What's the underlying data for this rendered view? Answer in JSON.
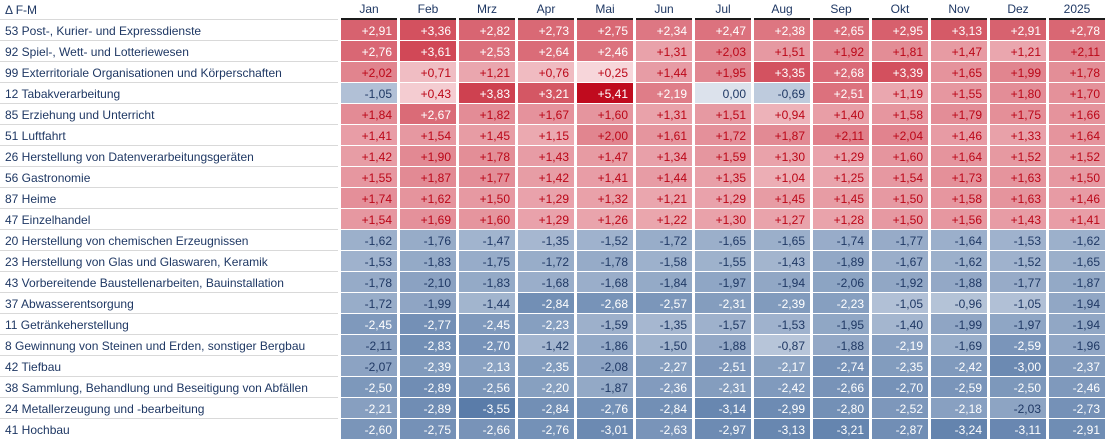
{
  "corner_label": "Δ F-M",
  "columns": [
    "Jan",
    "Feb",
    "Mrz",
    "Apr",
    "Mai",
    "Jun",
    "Jul",
    "Aug",
    "Sep",
    "Okt",
    "Nov",
    "Dez",
    "2025"
  ],
  "rows": [
    {
      "label": "53 Post-, Kurier- und Expressdienste",
      "values": [
        "+2,91",
        "+3,36",
        "+2,82",
        "+2,73",
        "+2,75",
        "+2,34",
        "+2,47",
        "+2,38",
        "+2,65",
        "+2,95",
        "+3,13",
        "+2,91",
        "+2,78"
      ]
    },
    {
      "label": "92 Spiel-, Wett- und Lotteriewesen",
      "values": [
        "+2,76",
        "+3,61",
        "+2,53",
        "+2,64",
        "+2,46",
        "+1,31",
        "+2,03",
        "+1,51",
        "+1,92",
        "+1,81",
        "+1,47",
        "+1,21",
        "+2,11"
      ]
    },
    {
      "label": "99 Exterritoriale Organisationen und Körperschaften",
      "values": [
        "+2,02",
        "+0,71",
        "+1,21",
        "+0,76",
        "+0,25",
        "+1,44",
        "+1,95",
        "+3,35",
        "+2,68",
        "+3,39",
        "+1,65",
        "+1,99",
        "+1,78"
      ]
    },
    {
      "label": "12 Tabakverarbeitung",
      "values": [
        "-1,05",
        "+0,43",
        "+3,83",
        "+3,21",
        "+5,41",
        "+2,19",
        "0,00",
        "-0,69",
        "+2,51",
        "+1,19",
        "+1,55",
        "+1,80",
        "+1,70"
      ]
    },
    {
      "label": "85 Erziehung und Unterricht",
      "values": [
        "+1,84",
        "+2,67",
        "+1,82",
        "+1,67",
        "+1,60",
        "+1,31",
        "+1,51",
        "+0,94",
        "+1,40",
        "+1,58",
        "+1,79",
        "+1,75",
        "+1,66"
      ]
    },
    {
      "label": "51 Luftfahrt",
      "values": [
        "+1,41",
        "+1,54",
        "+1,45",
        "+1,15",
        "+2,00",
        "+1,61",
        "+1,72",
        "+1,87",
        "+2,11",
        "+2,04",
        "+1,46",
        "+1,33",
        "+1,64"
      ]
    },
    {
      "label": "26 Herstellung von Datenverarbeitungsgeräten",
      "values": [
        "+1,42",
        "+1,90",
        "+1,78",
        "+1,43",
        "+1,47",
        "+1,34",
        "+1,59",
        "+1,30",
        "+1,29",
        "+1,60",
        "+1,64",
        "+1,52",
        "+1,52"
      ]
    },
    {
      "label": "56 Gastronomie",
      "values": [
        "+1,55",
        "+1,87",
        "+1,77",
        "+1,42",
        "+1,41",
        "+1,44",
        "+1,35",
        "+1,04",
        "+1,25",
        "+1,54",
        "+1,73",
        "+1,63",
        "+1,50"
      ]
    },
    {
      "label": "87 Heime",
      "values": [
        "+1,74",
        "+1,62",
        "+1,50",
        "+1,29",
        "+1,32",
        "+1,21",
        "+1,29",
        "+1,45",
        "+1,45",
        "+1,50",
        "+1,58",
        "+1,63",
        "+1,46"
      ]
    },
    {
      "label": "47 Einzelhandel",
      "values": [
        "+1,54",
        "+1,69",
        "+1,60",
        "+1,29",
        "+1,26",
        "+1,22",
        "+1,30",
        "+1,27",
        "+1,28",
        "+1,50",
        "+1,56",
        "+1,43",
        "+1,41"
      ]
    },
    {
      "label": "20 Herstellung von chemischen Erzeugnissen",
      "values": [
        "-1,62",
        "-1,76",
        "-1,47",
        "-1,35",
        "-1,52",
        "-1,72",
        "-1,65",
        "-1,65",
        "-1,74",
        "-1,77",
        "-1,64",
        "-1,53",
        "-1,62"
      ]
    },
    {
      "label": "23 Herstellung von Glas und Glaswaren, Keramik",
      "values": [
        "-1,53",
        "-1,83",
        "-1,75",
        "-1,72",
        "-1,78",
        "-1,58",
        "-1,55",
        "-1,43",
        "-1,89",
        "-1,67",
        "-1,62",
        "-1,52",
        "-1,65"
      ]
    },
    {
      "label": "43 Vorbereitende Baustellenarbeiten, Bauinstallation",
      "values": [
        "-1,78",
        "-2,10",
        "-1,83",
        "-1,68",
        "-1,68",
        "-1,84",
        "-1,97",
        "-1,94",
        "-2,06",
        "-1,92",
        "-1,88",
        "-1,77",
        "-1,87"
      ]
    },
    {
      "label": "37 Abwasserentsorgung",
      "values": [
        "-1,72",
        "-1,99",
        "-1,44",
        "-2,84",
        "-2,68",
        "-2,57",
        "-2,31",
        "-2,39",
        "-2,23",
        "-1,05",
        "-0,96",
        "-1,05",
        "-1,94"
      ]
    },
    {
      "label": "11 Getränkeherstellung",
      "values": [
        "-2,45",
        "-2,77",
        "-2,45",
        "-2,23",
        "-1,59",
        "-1,35",
        "-1,57",
        "-1,53",
        "-1,95",
        "-1,40",
        "-1,99",
        "-1,97",
        "-1,94"
      ]
    },
    {
      "label": "8 Gewinnung von Steinen und Erden, sonstiger Bergbau",
      "values": [
        "-2,11",
        "-2,83",
        "-2,70",
        "-1,42",
        "-1,86",
        "-1,50",
        "-1,88",
        "-0,87",
        "-1,88",
        "-2,19",
        "-1,69",
        "-2,59",
        "-1,96"
      ]
    },
    {
      "label": "42 Tiefbau",
      "values": [
        "-2,07",
        "-2,39",
        "-2,13",
        "-2,35",
        "-2,08",
        "-2,27",
        "-2,51",
        "-2,17",
        "-2,74",
        "-2,35",
        "-2,42",
        "-3,00",
        "-2,37"
      ]
    },
    {
      "label": "38 Sammlung, Behandlung und Beseitigung von Abfällen",
      "values": [
        "-2,50",
        "-2,89",
        "-2,56",
        "-2,20",
        "-1,87",
        "-2,36",
        "-2,31",
        "-2,42",
        "-2,66",
        "-2,70",
        "-2,59",
        "-2,50",
        "-2,46"
      ]
    },
    {
      "label": "24 Metallerzeugung und -bearbeitung",
      "values": [
        "-2,21",
        "-2,89",
        "-3,55",
        "-2,84",
        "-2,76",
        "-2,84",
        "-3,14",
        "-2,99",
        "-2,80",
        "-2,52",
        "-2,18",
        "-2,03",
        "-2,73"
      ]
    },
    {
      "label": "41 Hochbau",
      "values": [
        "-2,60",
        "-2,75",
        "-2,66",
        "-2,76",
        "-3,01",
        "-2,63",
        "-2,97",
        "-3,13",
        "-3,21",
        "-2,87",
        "-3,24",
        "-3,11",
        "-2,91"
      ]
    }
  ],
  "colors": {
    "positive_max": "#C00B1E",
    "positive_min": "#FCE9EC",
    "negative_max": "#5A7CA9",
    "negative_min": "#DCE2EC",
    "text_positive": "#BB0617",
    "text_negative": "#1F3864",
    "text_light": "#FFFFFF",
    "header_text": "#1F3864",
    "header_underline": "#1A1A1A",
    "row_separator": "#D9D9D9",
    "scale_max": 5.41,
    "scale_min": -3.55,
    "white_text_threshold": 2.12
  },
  "chart_data": {
    "type": "heatmap",
    "title": "Δ F-M",
    "x_categories": [
      "Jan",
      "Feb",
      "Mrz",
      "Apr",
      "Mai",
      "Jun",
      "Jul",
      "Aug",
      "Sep",
      "Okt",
      "Nov",
      "Dez",
      "2025"
    ],
    "y_categories": [
      "53 Post-, Kurier- und Expressdienste",
      "92 Spiel-, Wett- und Lotteriewesen",
      "99 Exterritoriale Organisationen und Körperschaften",
      "12 Tabakverarbeitung",
      "85 Erziehung und Unterricht",
      "51 Luftfahrt",
      "26 Herstellung von Datenverarbeitungsgeräten",
      "56 Gastronomie",
      "87 Heime",
      "47 Einzelhandel",
      "20 Herstellung von chemischen Erzeugnissen",
      "23 Herstellung von Glas und Glaswaren, Keramik",
      "43 Vorbereitende Baustellenarbeiten, Bauinstallation",
      "37 Abwasserentsorgung",
      "11 Getränkeherstellung",
      "8 Gewinnung von Steinen und Erden, sonstiger Bergbau",
      "42 Tiefbau",
      "38 Sammlung, Behandlung und Beseitigung von Abfällen",
      "24 Metallerzeugung und -bearbeitung",
      "41 Hochbau"
    ],
    "values": [
      [
        2.91,
        3.36,
        2.82,
        2.73,
        2.75,
        2.34,
        2.47,
        2.38,
        2.65,
        2.95,
        3.13,
        2.91,
        2.78
      ],
      [
        2.76,
        3.61,
        2.53,
        2.64,
        2.46,
        1.31,
        2.03,
        1.51,
        1.92,
        1.81,
        1.47,
        1.21,
        2.11
      ],
      [
        2.02,
        0.71,
        1.21,
        0.76,
        0.25,
        1.44,
        1.95,
        3.35,
        2.68,
        3.39,
        1.65,
        1.99,
        1.78
      ],
      [
        -1.05,
        0.43,
        3.83,
        3.21,
        5.41,
        2.19,
        0.0,
        -0.69,
        2.51,
        1.19,
        1.55,
        1.8,
        1.7
      ],
      [
        1.84,
        2.67,
        1.82,
        1.67,
        1.6,
        1.31,
        1.51,
        0.94,
        1.4,
        1.58,
        1.79,
        1.75,
        1.66
      ],
      [
        1.41,
        1.54,
        1.45,
        1.15,
        2.0,
        1.61,
        1.72,
        1.87,
        2.11,
        2.04,
        1.46,
        1.33,
        1.64
      ],
      [
        1.42,
        1.9,
        1.78,
        1.43,
        1.47,
        1.34,
        1.59,
        1.3,
        1.29,
        1.6,
        1.64,
        1.52,
        1.52
      ],
      [
        1.55,
        1.87,
        1.77,
        1.42,
        1.41,
        1.44,
        1.35,
        1.04,
        1.25,
        1.54,
        1.73,
        1.63,
        1.5
      ],
      [
        1.74,
        1.62,
        1.5,
        1.29,
        1.32,
        1.21,
        1.29,
        1.45,
        1.45,
        1.5,
        1.58,
        1.63,
        1.46
      ],
      [
        1.54,
        1.69,
        1.6,
        1.29,
        1.26,
        1.22,
        1.3,
        1.27,
        1.28,
        1.5,
        1.56,
        1.43,
        1.41
      ],
      [
        -1.62,
        -1.76,
        -1.47,
        -1.35,
        -1.52,
        -1.72,
        -1.65,
        -1.65,
        -1.74,
        -1.77,
        -1.64,
        -1.53,
        -1.62
      ],
      [
        -1.53,
        -1.83,
        -1.75,
        -1.72,
        -1.78,
        -1.58,
        -1.55,
        -1.43,
        -1.89,
        -1.67,
        -1.62,
        -1.52,
        -1.65
      ],
      [
        -1.78,
        -2.1,
        -1.83,
        -1.68,
        -1.68,
        -1.84,
        -1.97,
        -1.94,
        -2.06,
        -1.92,
        -1.88,
        -1.77,
        -1.87
      ],
      [
        -1.72,
        -1.99,
        -1.44,
        -2.84,
        -2.68,
        -2.57,
        -2.31,
        -2.39,
        -2.23,
        -1.05,
        -0.96,
        -1.05,
        -1.94
      ],
      [
        -2.45,
        -2.77,
        -2.45,
        -2.23,
        -1.59,
        -1.35,
        -1.57,
        -1.53,
        -1.95,
        -1.4,
        -1.99,
        -1.97,
        -1.94
      ],
      [
        -2.11,
        -2.83,
        -2.7,
        -1.42,
        -1.86,
        -1.5,
        -1.88,
        -0.87,
        -1.88,
        -2.19,
        -1.69,
        -2.59,
        -1.96
      ],
      [
        -2.07,
        -2.39,
        -2.13,
        -2.35,
        -2.08,
        -2.27,
        -2.51,
        -2.17,
        -2.74,
        -2.35,
        -2.42,
        -3.0,
        -2.37
      ],
      [
        -2.5,
        -2.89,
        -2.56,
        -2.2,
        -1.87,
        -2.36,
        -2.31,
        -2.42,
        -2.66,
        -2.7,
        -2.59,
        -2.5,
        -2.46
      ],
      [
        -2.21,
        -2.89,
        -3.55,
        -2.84,
        -2.76,
        -2.84,
        -3.14,
        -2.99,
        -2.8,
        -2.52,
        -2.18,
        -2.03,
        -2.73
      ],
      [
        -2.6,
        -2.75,
        -2.66,
        -2.76,
        -3.01,
        -2.63,
        -2.97,
        -3.13,
        -3.21,
        -2.87,
        -3.24,
        -3.11,
        -2.91
      ]
    ],
    "value_range": [
      -3.55,
      5.41
    ],
    "color_scale": "diverging red (positive) / blue (negative), white near zero",
    "legend_position": "none",
    "grid": false
  }
}
